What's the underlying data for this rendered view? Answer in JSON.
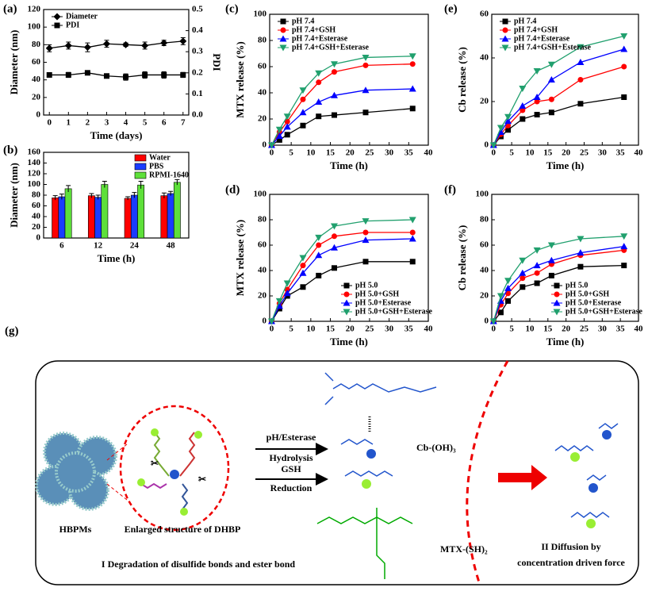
{
  "chart_data": [
    {
      "type": "line",
      "panel_label": "(a)",
      "x": [
        0,
        1,
        2,
        3,
        4,
        5,
        6,
        7
      ],
      "xlim": [
        -0.3,
        7.3
      ],
      "xticks": [
        0,
        1,
        2,
        3,
        4,
        5,
        6,
        7
      ],
      "ylim": [
        0,
        120
      ],
      "yticks": [
        0,
        20,
        40,
        60,
        80,
        100,
        120
      ],
      "y2lim": [
        0,
        0.5
      ],
      "y2ticks": [
        {
          "value": 0,
          "label": "0.0"
        },
        0.1,
        0.2,
        0.3,
        0.4,
        0.5
      ],
      "xlabel": "Time (days)",
      "ylabel": "Diameter (nm)",
      "y2label": "PDI",
      "legend": "upper-left",
      "series": [
        {
          "name": "Diameter",
          "color": "#000000",
          "marker": "diamond",
          "values": [
            76,
            79,
            77,
            81,
            80,
            79,
            82,
            84
          ],
          "errors": [
            4,
            4,
            5,
            4,
            2,
            4,
            3,
            4
          ]
        },
        {
          "name": "PDI",
          "color": "#000000",
          "marker": "square",
          "axis": "y2",
          "values": [
            0.19,
            0.19,
            0.2,
            0.185,
            0.18,
            0.19,
            0.19,
            0.19
          ],
          "errors": [
            0.01,
            0.012,
            0.008,
            0.01,
            0.015,
            0.015,
            0.015,
            0.012
          ]
        }
      ]
    },
    {
      "type": "bar",
      "panel_label": "(b)",
      "categories": [
        "6",
        "12",
        "24",
        "48"
      ],
      "ylim": [
        0,
        160
      ],
      "yticks": [
        0,
        20,
        40,
        60,
        80,
        100,
        120,
        140,
        160
      ],
      "xlabel": "Time (h)",
      "ylabel": "Diameter (nm)",
      "legend": "upper-right",
      "series": [
        {
          "name": "Water",
          "color": "#ff0000",
          "values": [
            75,
            79,
            74,
            79
          ],
          "errors": [
            4,
            4,
            3,
            5
          ]
        },
        {
          "name": "PBS",
          "color": "#1a3cff",
          "values": [
            77,
            76,
            80,
            83
          ],
          "errors": [
            5,
            4,
            5,
            4
          ]
        },
        {
          "name": "RPMI-1640",
          "color": "#5ee03a",
          "values": [
            92,
            100,
            99,
            104
          ],
          "errors": [
            6,
            6,
            7,
            5
          ]
        }
      ]
    },
    {
      "type": "line",
      "panel_label": "(c)",
      "x": [
        0,
        2,
        4,
        8,
        12,
        16,
        24,
        36
      ],
      "xlim": [
        -0.5,
        40
      ],
      "xticks": [
        0,
        5,
        10,
        15,
        20,
        25,
        30,
        35,
        40
      ],
      "ylim": [
        0,
        100
      ],
      "yticks": [
        0,
        20,
        40,
        60,
        80,
        100
      ],
      "xlabel": "Time (h)",
      "ylabel": "MTX release (%)",
      "legend": "upper-left",
      "series": [
        {
          "name": "pH 7.4",
          "color": "#000000",
          "marker": "square",
          "values": [
            0,
            4,
            8,
            15,
            22,
            23,
            25,
            28
          ]
        },
        {
          "name": "pH 7.4+GSH",
          "color": "#ff0000",
          "marker": "circle",
          "values": [
            0,
            10,
            18,
            35,
            48,
            56,
            61,
            62
          ]
        },
        {
          "name": "pH 7.4+Esterase",
          "color": "#0000ff",
          "marker": "triangle-up",
          "values": [
            0,
            7,
            14,
            25,
            33,
            38,
            42,
            43
          ]
        },
        {
          "name": "pH 7.4+GSH+Esterase",
          "color": "#21a06e",
          "marker": "triangle-down",
          "values": [
            0,
            12,
            22,
            42,
            55,
            62,
            67,
            68
          ]
        }
      ]
    },
    {
      "type": "line",
      "panel_label": "(d)",
      "x": [
        0,
        2,
        4,
        8,
        12,
        16,
        24,
        36
      ],
      "xlim": [
        -0.5,
        40
      ],
      "xticks": [
        0,
        5,
        10,
        15,
        20,
        25,
        30,
        35,
        40
      ],
      "ylim": [
        0,
        100
      ],
      "yticks": [
        0,
        20,
        40,
        60,
        80,
        100
      ],
      "xlabel": "Time (h)",
      "ylabel": "MTX release (%)",
      "legend": "lower-right",
      "series": [
        {
          "name": "pH 5.0",
          "color": "#000000",
          "marker": "square",
          "values": [
            0,
            10,
            20,
            27,
            36,
            42,
            47,
            47
          ]
        },
        {
          "name": "pH 5.0+GSH",
          "color": "#ff0000",
          "marker": "circle",
          "values": [
            0,
            14,
            25,
            44,
            60,
            67,
            70,
            70
          ]
        },
        {
          "name": "pH 5.0+Esterase",
          "color": "#0000ff",
          "marker": "triangle-up",
          "values": [
            0,
            12,
            22,
            38,
            52,
            58,
            64,
            65
          ]
        },
        {
          "name": "pH 5.0+GSH+Esterase",
          "color": "#21a06e",
          "marker": "triangle-down",
          "values": [
            0,
            16,
            30,
            50,
            66,
            75,
            79,
            80
          ]
        }
      ]
    },
    {
      "type": "line",
      "panel_label": "(e)",
      "x": [
        0,
        2,
        4,
        8,
        12,
        16,
        24,
        36
      ],
      "xlim": [
        -0.5,
        40
      ],
      "xticks": [
        0,
        5,
        10,
        15,
        20,
        25,
        30,
        35,
        40
      ],
      "ylim": [
        0,
        60
      ],
      "yticks": [
        0,
        20,
        40,
        60
      ],
      "xlabel": "Time (h)",
      "ylabel": "Cb release (%)",
      "legend": "upper-left",
      "series": [
        {
          "name": "pH 7.4",
          "color": "#000000",
          "marker": "square",
          "values": [
            0,
            4,
            7,
            12,
            14,
            15,
            19,
            22
          ]
        },
        {
          "name": "pH 7.4+GSH",
          "color": "#ff0000",
          "marker": "circle",
          "values": [
            0,
            5,
            9,
            16,
            20,
            21,
            30,
            36
          ]
        },
        {
          "name": "pH 7.4+Esterase",
          "color": "#0000ff",
          "marker": "triangle-up",
          "values": [
            0,
            6,
            11,
            18,
            22,
            30,
            38,
            44
          ]
        },
        {
          "name": "pH 7.4+GSH+Esterase",
          "color": "#21a06e",
          "marker": "triangle-down",
          "values": [
            0,
            8,
            13,
            26,
            34,
            37,
            45,
            50
          ]
        }
      ]
    },
    {
      "type": "line",
      "panel_label": "(f)",
      "x": [
        0,
        2,
        4,
        8,
        12,
        16,
        24,
        36
      ],
      "xlim": [
        -0.5,
        40
      ],
      "xticks": [
        0,
        5,
        10,
        15,
        20,
        25,
        30,
        35,
        40
      ],
      "ylim": [
        0,
        100
      ],
      "yticks": [
        0,
        20,
        40,
        60,
        80,
        100
      ],
      "xlabel": "Time (h)",
      "ylabel": "Cb release (%)",
      "legend": "lower-right",
      "series": [
        {
          "name": "pH 5.0",
          "color": "#000000",
          "marker": "square",
          "values": [
            0,
            7,
            16,
            27,
            30,
            36,
            43,
            44
          ]
        },
        {
          "name": "pH 5.0+GSH",
          "color": "#ff0000",
          "marker": "circle",
          "values": [
            0,
            13,
            22,
            34,
            38,
            45,
            52,
            56
          ]
        },
        {
          "name": "pH 5.0+Esterase",
          "color": "#0000ff",
          "marker": "triangle-up",
          "values": [
            0,
            16,
            26,
            38,
            44,
            48,
            54,
            59
          ]
        },
        {
          "name": "pH 5.0+GSH+Esterase",
          "color": "#21a06e",
          "marker": "triangle-down",
          "values": [
            0,
            20,
            32,
            48,
            56,
            60,
            65,
            67
          ]
        }
      ]
    }
  ],
  "diagram": {
    "panel_label": "(g)",
    "hbpms": "HBPMs",
    "enlarged": "Enlarged structure of DHBP",
    "step1a": "pH/Esterase",
    "step1b": "Hydrolysis",
    "step2a": "GSH",
    "step2b": "Reduction",
    "cb": "Cb-(OH)₃",
    "mtx": "MTX-(SH)₂",
    "stage1": "I Degradation of disulfide bonds and ester bond",
    "stage2a": "II Diffusion by",
    "stage2b": "concentration driven force"
  }
}
